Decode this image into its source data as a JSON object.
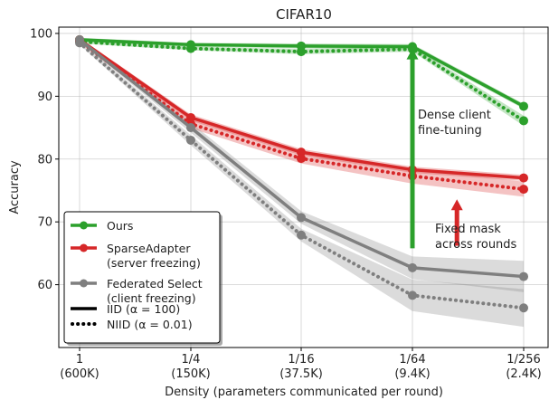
{
  "chart_data": {
    "type": "line",
    "title": "CIFAR10",
    "xlabel": "Density (parameters communicated per round)",
    "ylabel": "Accuracy",
    "x_categories": [
      [
        "1",
        "(600K)"
      ],
      [
        "1/4",
        "(150K)"
      ],
      [
        "1/16",
        "(37.5K)"
      ],
      [
        "1/64",
        "(9.4K)"
      ],
      [
        "1/256",
        "(2.4K)"
      ]
    ],
    "ylim": [
      50,
      101
    ],
    "yticks": [
      60,
      70,
      80,
      90,
      100
    ],
    "grid": true,
    "legend_position": "bottom-left",
    "series": [
      {
        "name": "Ours",
        "setting": "IID",
        "color": "#2ca02c",
        "values": [
          99.0,
          98.2,
          98.0,
          97.9,
          88.4
        ],
        "band": [
          0.3,
          0.3,
          0.4,
          0.4,
          0.4
        ]
      },
      {
        "name": "Ours",
        "setting": "NIID",
        "color": "#2ca02c",
        "values": [
          98.7,
          97.6,
          97.1,
          97.5,
          86.1
        ],
        "band": [
          0.3,
          0.3,
          0.4,
          0.4,
          0.8
        ]
      },
      {
        "name": "SparseAdapter",
        "setting": "IID",
        "color": "#d62728",
        "values": [
          99.0,
          86.6,
          81.1,
          78.3,
          77.0
        ],
        "band": [
          0.3,
          0.5,
          0.5,
          0.5,
          0.5
        ]
      },
      {
        "name": "SparseAdapter",
        "setting": "NIID",
        "color": "#d62728",
        "values": [
          98.8,
          85.6,
          80.1,
          77.3,
          75.2
        ],
        "band": [
          0.3,
          0.7,
          0.8,
          1.2,
          1.2
        ]
      },
      {
        "name": "Federated Select",
        "setting": "IID",
        "color": "#7f7f7f",
        "values": [
          99.0,
          85.0,
          70.7,
          62.7,
          61.3
        ],
        "band": [
          0.3,
          0.8,
          1.0,
          1.8,
          2.5
        ]
      },
      {
        "name": "Federated Select",
        "setting": "NIID",
        "color": "#7f7f7f",
        "values": [
          98.5,
          83.0,
          67.9,
          58.3,
          56.3
        ],
        "band": [
          0.3,
          0.8,
          1.0,
          2.5,
          3.0
        ]
      }
    ],
    "legend": [
      {
        "label": "Ours",
        "kind": "marker",
        "color": "#2ca02c"
      },
      {
        "label": "SparseAdapter\n(server freezing)",
        "kind": "marker",
        "color": "#d62728"
      },
      {
        "label": "Federated Select\n(client freezing)",
        "kind": "marker",
        "color": "#7f7f7f"
      },
      {
        "label": "IID (α = 100)",
        "kind": "solid",
        "color": "#000000"
      },
      {
        "label": "NIID (α = 0.01)",
        "kind": "dotted",
        "color": "#000000"
      }
    ],
    "annotations": [
      {
        "text": "Dense client\nfine-tuning",
        "color": "#2ca02c",
        "arrow_x": 3,
        "arrow_from": 65.8,
        "arrow_to": 97.6
      },
      {
        "text": "Fixed mask\nacross rounds",
        "color": "#d62728",
        "arrow_x": 3.4,
        "arrow_from": 66.2,
        "arrow_to": 73.6
      }
    ]
  }
}
